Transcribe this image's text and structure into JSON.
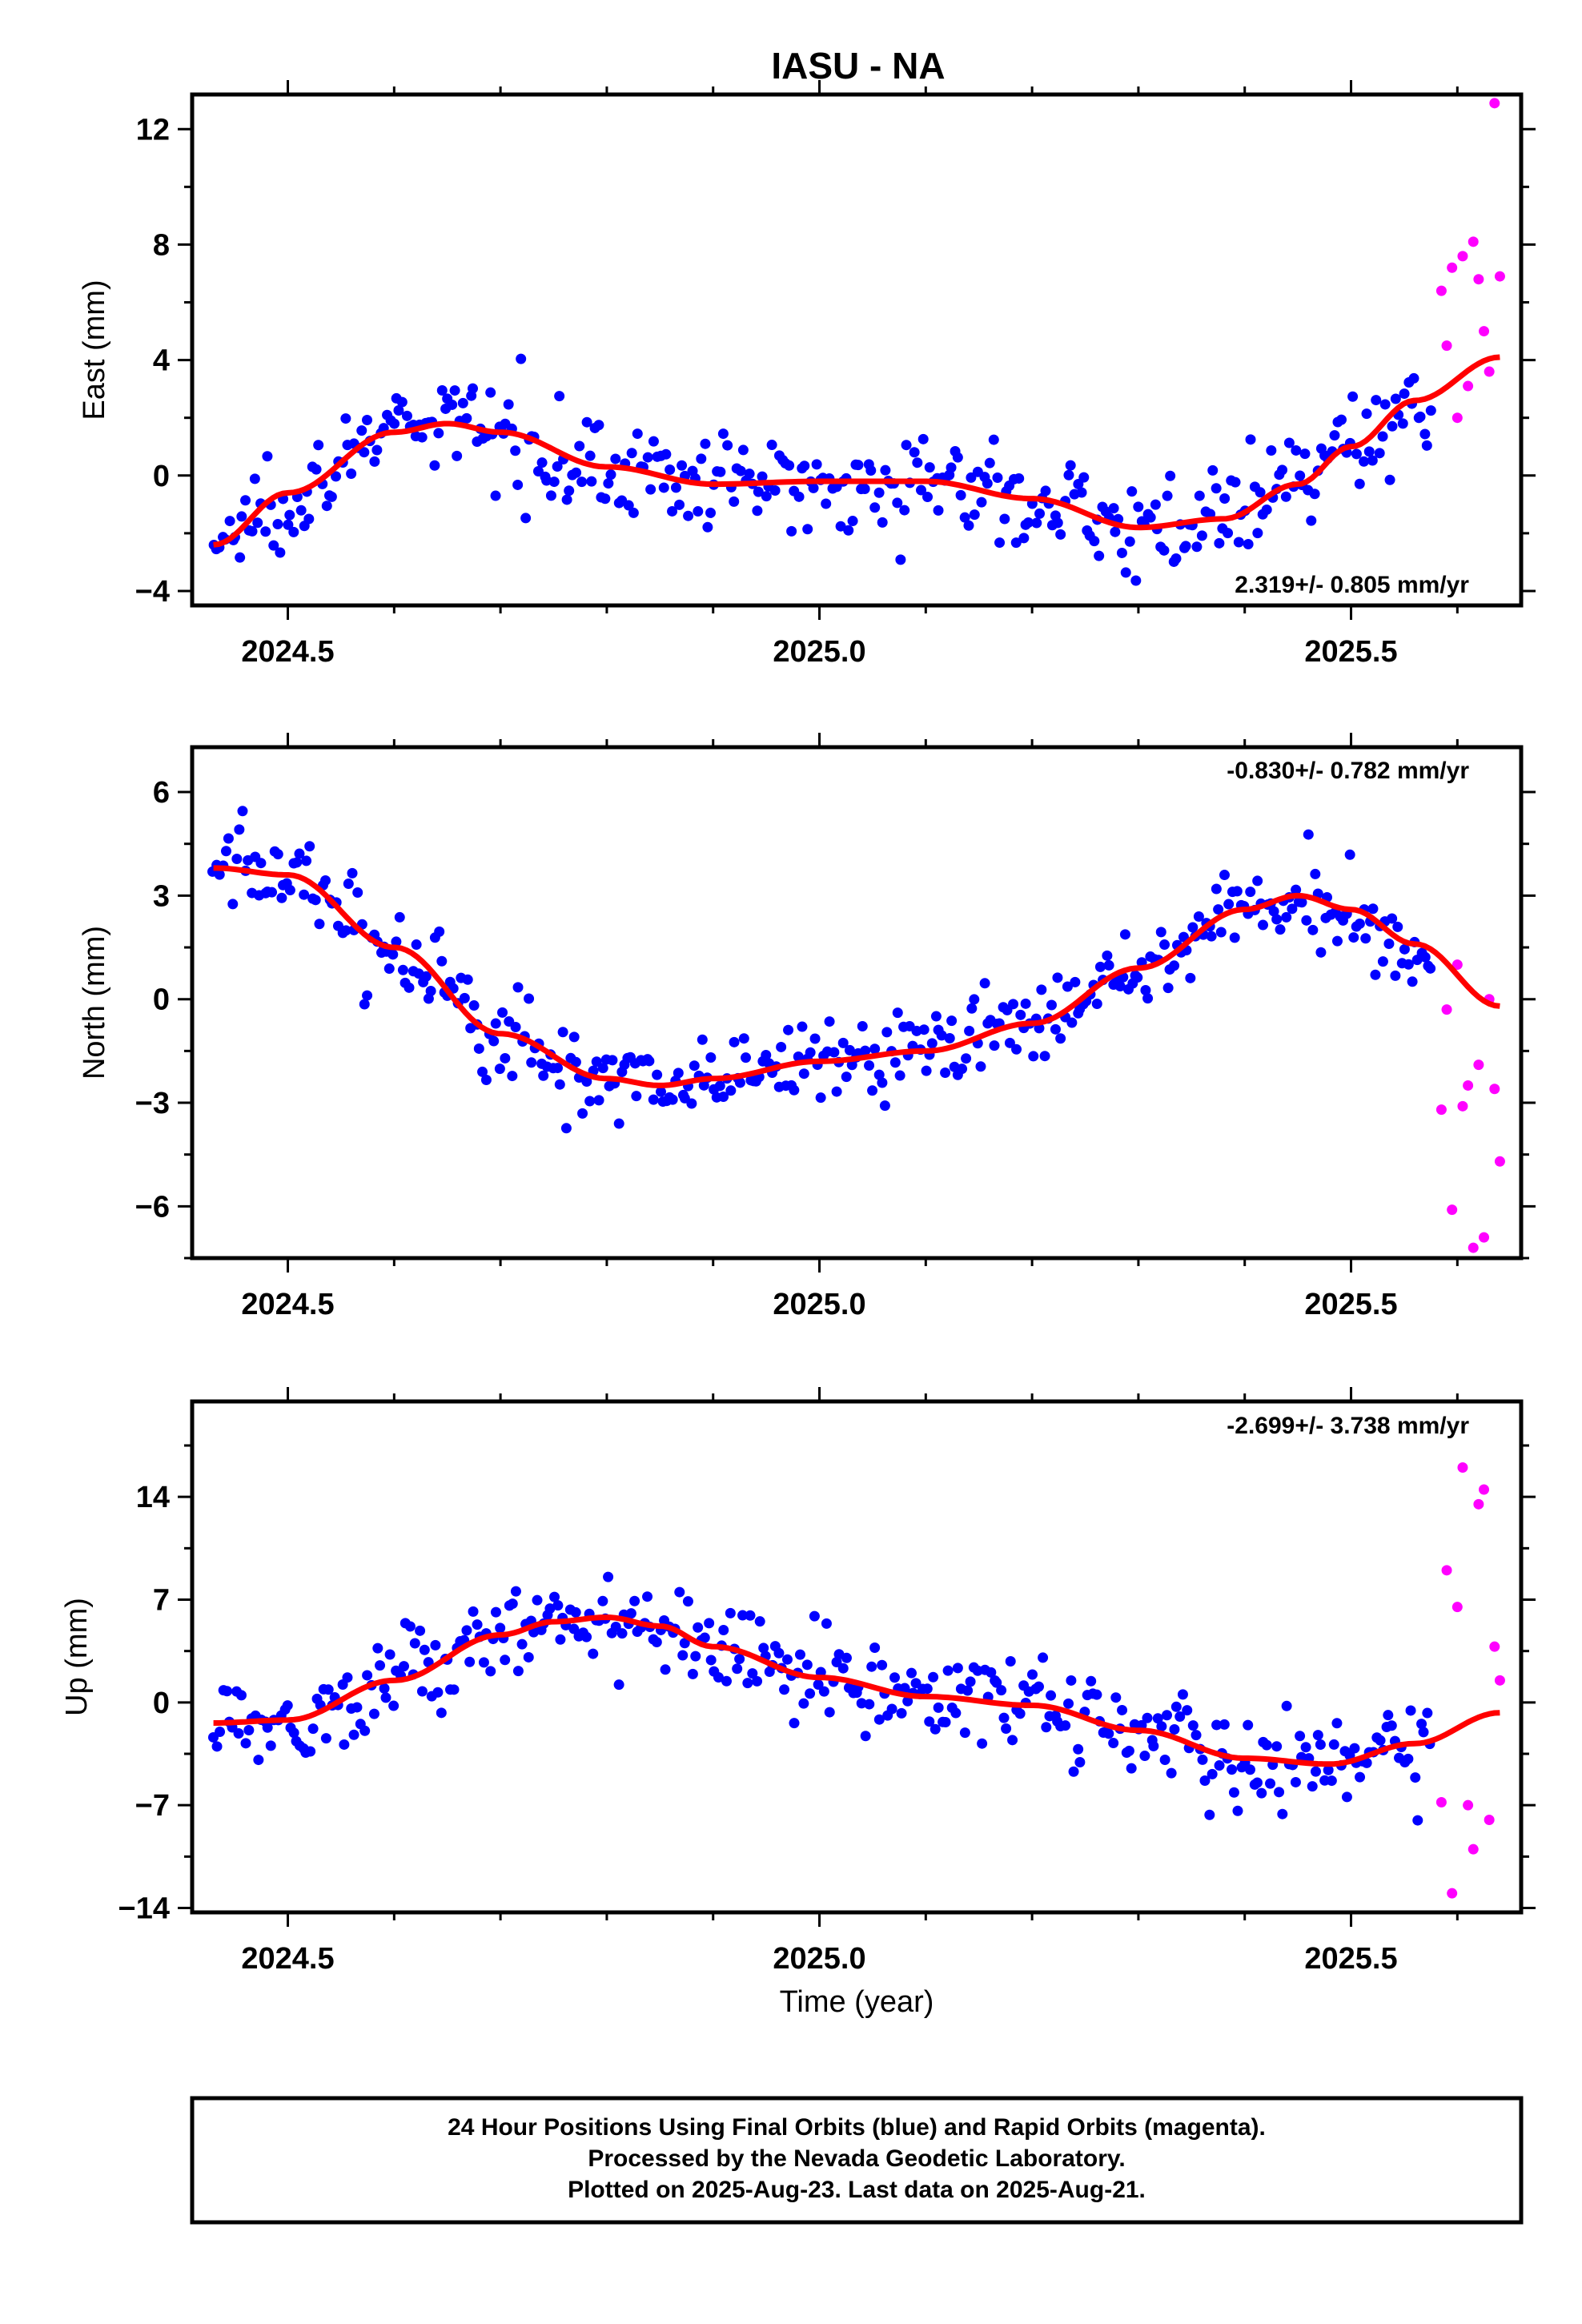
{
  "title": "IASU - NA",
  "colors": {
    "final": "#0000ff",
    "rapid": "#ff00ff",
    "fit": "#ff0000",
    "frame": "#000000"
  },
  "xlabel": "Time (year)",
  "footer": {
    "line1": "24 Hour Positions Using Final Orbits (blue) and Rapid Orbits (magenta).",
    "line2": "Processed by the Nevada Geodetic Laboratory.",
    "line3": "Plotted on 2025-Aug-23. Last data on 2025-Aug-21."
  },
  "chart_data": [
    {
      "type": "scatter",
      "name": "east",
      "ylabel": "East (mm)",
      "rate": "2.319+/- 0.805 mm/yr",
      "rate_position": "bottom-right",
      "xlim": [
        2024.41,
        2025.66
      ],
      "ylim": [
        -4.5,
        13.2
      ],
      "xticks": [
        2024.5,
        2025.0,
        2025.5
      ],
      "xtick_labels": [
        "2024.5",
        "2025.0",
        "2025.5"
      ],
      "yticks": [
        -4,
        0,
        4,
        8,
        12
      ],
      "ytick_labels": [
        "−4",
        "0",
        "4",
        "8",
        "12"
      ],
      "grid": false,
      "fit": {
        "x": [
          2024.43,
          2024.5,
          2024.6,
          2024.65,
          2024.7,
          2024.8,
          2024.9,
          2025.0,
          2025.1,
          2025.2,
          2025.3,
          2025.38,
          2025.45,
          2025.5,
          2025.56,
          2025.64
        ],
        "y": [
          -2.4,
          -0.6,
          1.5,
          1.8,
          1.5,
          0.3,
          -0.3,
          -0.2,
          -0.2,
          -0.8,
          -1.8,
          -1.5,
          -0.3,
          1.0,
          2.6,
          4.1
        ]
      },
      "rapid": {
        "x": [
          2025.585,
          2025.59,
          2025.595,
          2025.6,
          2025.605,
          2025.61,
          2025.615,
          2025.62,
          2025.625,
          2025.63,
          2025.635,
          2025.64
        ],
        "y": [
          6.4,
          4.5,
          7.2,
          2.0,
          7.6,
          3.1,
          8.1,
          6.8,
          5.0,
          3.6,
          12.9,
          6.9
        ]
      }
    },
    {
      "type": "scatter",
      "name": "north",
      "ylabel": "North (mm)",
      "rate": "-0.830+/- 0.782 mm/yr",
      "rate_position": "top-right",
      "xlim": [
        2024.41,
        2025.66
      ],
      "ylim": [
        -7.5,
        7.3
      ],
      "xticks": [
        2024.5,
        2025.0,
        2025.5
      ],
      "xtick_labels": [
        "2024.5",
        "2025.0",
        "2025.5"
      ],
      "yticks": [
        -6,
        -3,
        0,
        3,
        6
      ],
      "ytick_labels": [
        "−6",
        "−3",
        "0",
        "3",
        "6"
      ],
      "grid": false,
      "fit": {
        "x": [
          2024.43,
          2024.5,
          2024.6,
          2024.7,
          2024.8,
          2024.85,
          2024.9,
          2025.0,
          2025.1,
          2025.2,
          2025.3,
          2025.4,
          2025.45,
          2025.5,
          2025.56,
          2025.64
        ],
        "y": [
          3.8,
          3.6,
          1.5,
          -1.0,
          -2.3,
          -2.5,
          -2.3,
          -1.8,
          -1.5,
          -0.7,
          0.9,
          2.6,
          3.0,
          2.6,
          1.6,
          -0.2
        ]
      },
      "rapid": {
        "x": [
          2025.585,
          2025.59,
          2025.595,
          2025.6,
          2025.605,
          2025.61,
          2025.615,
          2025.62,
          2025.625,
          2025.63,
          2025.635,
          2025.64
        ],
        "y": [
          -3.2,
          -0.3,
          -6.1,
          1.0,
          -3.1,
          -2.5,
          -7.2,
          -1.9,
          -6.9,
          0.0,
          -2.6,
          -4.7
        ]
      }
    },
    {
      "type": "scatter",
      "name": "up",
      "ylabel": "Up (mm)",
      "rate": "-2.699+/- 3.738 mm/yr",
      "rate_position": "top-right",
      "xlim": [
        2024.41,
        2025.66
      ],
      "ylim": [
        -14.3,
        20.5
      ],
      "xticks": [
        2024.5,
        2025.0,
        2025.5
      ],
      "xtick_labels": [
        "2024.5",
        "2025.0",
        "2025.5"
      ],
      "yticks": [
        -14,
        -7,
        0,
        7,
        14
      ],
      "ytick_labels": [
        "−14",
        "−7",
        "0",
        "7",
        "14"
      ],
      "grid": false,
      "fit": {
        "x": [
          2024.43,
          2024.5,
          2024.6,
          2024.7,
          2024.75,
          2024.8,
          2024.85,
          2024.9,
          2025.0,
          2025.1,
          2025.2,
          2025.3,
          2025.4,
          2025.48,
          2025.56,
          2025.64
        ],
        "y": [
          -1.4,
          -1.2,
          1.5,
          4.6,
          5.5,
          5.8,
          5.2,
          3.8,
          1.7,
          0.4,
          -0.2,
          -1.9,
          -3.8,
          -4.2,
          -2.8,
          -0.7
        ]
      },
      "rapid": {
        "x": [
          2025.585,
          2025.59,
          2025.595,
          2025.6,
          2025.605,
          2025.61,
          2025.615,
          2025.62,
          2025.625,
          2025.63,
          2025.635,
          2025.64
        ],
        "y": [
          -6.8,
          9.0,
          -13.0,
          6.5,
          16.0,
          -7.0,
          -10.0,
          13.5,
          14.5,
          -8.0,
          3.8,
          1.5
        ]
      }
    }
  ]
}
